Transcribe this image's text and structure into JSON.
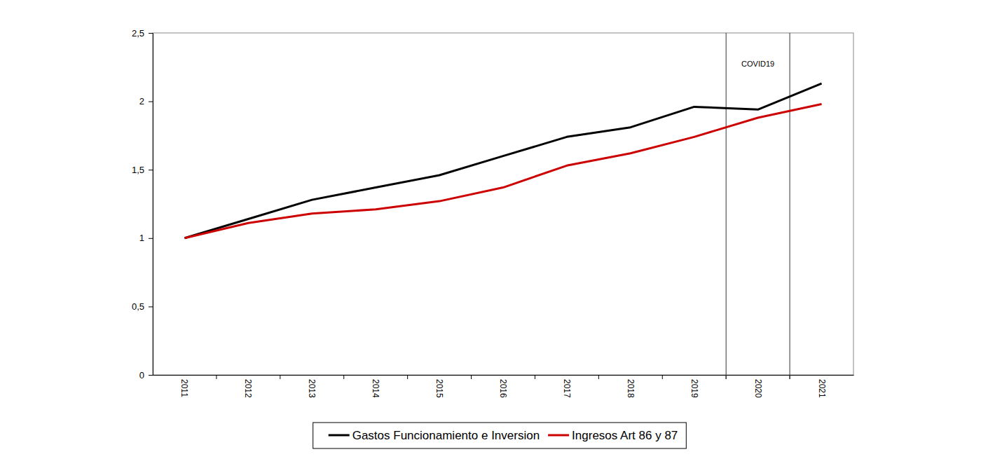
{
  "chart_data": {
    "type": "line",
    "categories": [
      "2011",
      "2012",
      "2013",
      "2014",
      "2015",
      "2016",
      "2017",
      "2018",
      "2019",
      "2020",
      "2021"
    ],
    "series": [
      {
        "name": "Gastos Funcionamiento e Inversion",
        "color": "#000000",
        "values": [
          1.0,
          1.14,
          1.28,
          1.37,
          1.46,
          1.6,
          1.74,
          1.81,
          1.96,
          1.94,
          2.13
        ]
      },
      {
        "name": "Ingresos Art 86 y 87",
        "color": "#cc0000",
        "values": [
          1.0,
          1.11,
          1.18,
          1.21,
          1.27,
          1.37,
          1.53,
          1.62,
          1.74,
          1.88,
          1.98
        ]
      }
    ],
    "ylim": [
      0,
      2.5
    ],
    "yticks": [
      0,
      {
        "value": 0.5,
        "label": "0,5"
      },
      1,
      {
        "value": 1.5,
        "label": "1,5"
      },
      2,
      {
        "value": 2.5,
        "label": "2,5"
      }
    ],
    "annotations": [
      {
        "text": "COVID19",
        "x": "2020"
      }
    ],
    "grid": false,
    "legend": "bottom"
  }
}
